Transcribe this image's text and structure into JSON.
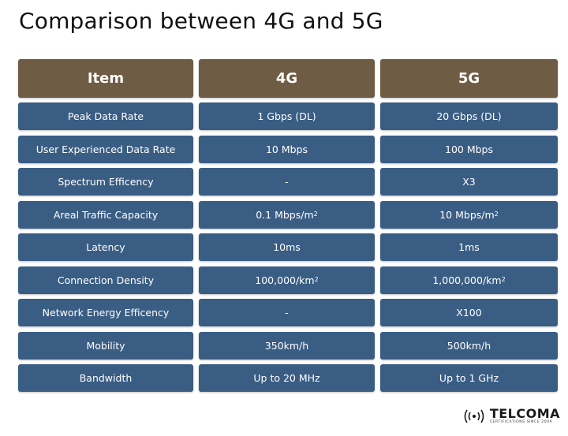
{
  "title": "Comparison between 4G and 5G",
  "headers": [
    "Item",
    "4G",
    "5G"
  ],
  "rows": [
    {
      "item": "Peak Data Rate",
      "g4": "1 Gbps (DL)",
      "g5": "20 Gbps (DL)"
    },
    {
      "item": "User Experienced Data Rate",
      "g4": "10 Mbps",
      "g5": "100 Mbps"
    },
    {
      "item": "Spectrum Efficency",
      "g4": "-",
      "g5": "X3"
    },
    {
      "item": "Areal Traffic Capacity",
      "g4": "0.1 Mbps/m",
      "g4_sup": "2",
      "g5": "10 Mbps/m",
      "g5_sup": "2"
    },
    {
      "item": "Latency",
      "g4": "10ms",
      "g5": "1ms"
    },
    {
      "item": "Connection Density",
      "g4": "100,000/km",
      "g4_sup": "2",
      "g5": "1,000,000/km",
      "g5_sup": "2"
    },
    {
      "item": "Network Energy Efficency",
      "g4": "-",
      "g5": "X100"
    },
    {
      "item": "Mobility",
      "g4": "350km/h",
      "g5": "500km/h"
    },
    {
      "item": "Bandwidth",
      "g4": "Up to 20 MHz",
      "g5": "Up to 1 GHz"
    }
  ],
  "logo": {
    "name": "TELCOMA",
    "tagline": "CERTIFICATIONS SINCE 2009"
  },
  "colors": {
    "header_bg": "#6f5c44",
    "cell_bg": "#3a5d84",
    "text": "#ffffff"
  },
  "icons": {
    "logo_mark": "broadcast-waves-icon"
  }
}
